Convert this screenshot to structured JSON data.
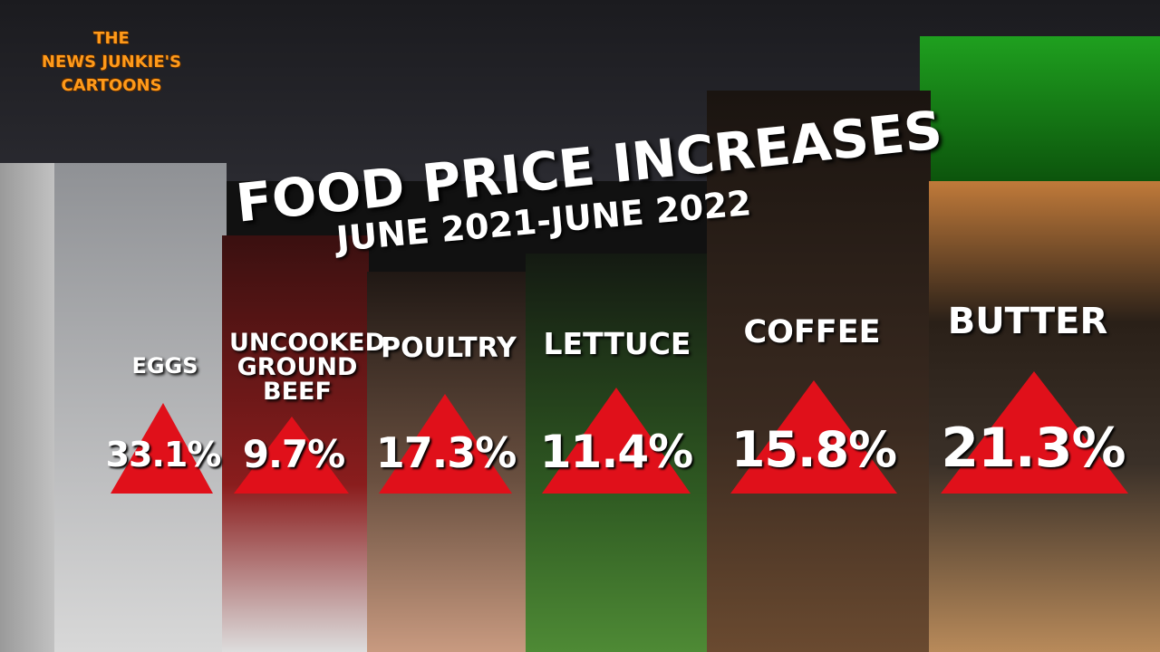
{
  "watermark": {
    "lines": [
      "THE",
      "NEWS JUNKIE'S",
      "CARTOONS"
    ]
  },
  "graphic": {
    "title": "FOOD PRICE INCREASES",
    "subtitle": "JUNE 2021-JUNE 2022",
    "items": [
      {
        "label": "EGGS",
        "value": "33.1%"
      },
      {
        "label": "UNCOOKED GROUND BEEF",
        "value": "9.7%"
      },
      {
        "label": "POULTRY",
        "value": "17.3%"
      },
      {
        "label": "LETTUCE",
        "value": "11.4%"
      },
      {
        "label": "COFFEE",
        "value": "15.8%"
      },
      {
        "label": "BUTTER",
        "value": "21.3%"
      }
    ]
  }
}
